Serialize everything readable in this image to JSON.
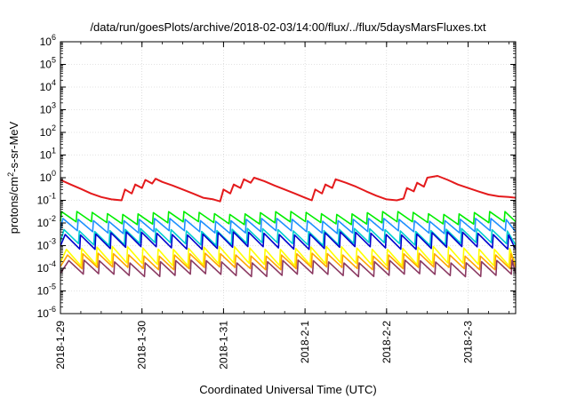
{
  "chart_data": {
    "type": "line",
    "title": "/data/run/goesPlots/archive/2018-02-03/14:00/flux/../flux/5daysMarsFluxes.txt",
    "xlabel": "Coordinated Universal Time (UTC)",
    "ylabel_main": "protons/cm",
    "ylabel_sup": "2",
    "ylabel_rest": "-s-sr-MeV",
    "xscale": "time",
    "x_range": [
      "2018-01-29 00:00",
      "2018-02-03 14:00"
    ],
    "x_ticks": [
      "2018-1-29",
      "2018-1-30",
      "2018-1-31",
      "2018-2-1",
      "2018-2-2",
      "2018-2-3"
    ],
    "yscale": "log",
    "ylim": [
      1e-06,
      1000000.0
    ],
    "y_ticks": [
      {
        "base": "10",
        "exp": "-6"
      },
      {
        "base": "10",
        "exp": "-5"
      },
      {
        "base": "10",
        "exp": "-4"
      },
      {
        "base": "10",
        "exp": "-3"
      },
      {
        "base": "10",
        "exp": "-2"
      },
      {
        "base": "10",
        "exp": "-1"
      },
      {
        "base": "10",
        "exp": "0"
      },
      {
        "base": "10",
        "exp": "1"
      },
      {
        "base": "10",
        "exp": "2"
      },
      {
        "base": "10",
        "exp": "3"
      },
      {
        "base": "10",
        "exp": "4"
      },
      {
        "base": "10",
        "exp": "5"
      },
      {
        "base": "10",
        "exp": "6"
      }
    ],
    "grid": true,
    "legend": "none",
    "series": [
      {
        "color": "#e41a1c",
        "kind": "main",
        "x": [
          "2018-01-29 00:00",
          "2018-01-29 03:00",
          "2018-01-29 06:00",
          "2018-01-29 09:00",
          "2018-01-29 12:00",
          "2018-01-29 15:00",
          "2018-01-29 18:00",
          "2018-01-29 19:00",
          "2018-01-29 21:00",
          "2018-01-29 22:00",
          "2018-01-30 00:00",
          "2018-01-30 01:00",
          "2018-01-30 03:00",
          "2018-01-30 04:00",
          "2018-01-30 06:00",
          "2018-01-30 09:00",
          "2018-01-30 12:00",
          "2018-01-30 15:00",
          "2018-01-30 18:00",
          "2018-01-30 21:00",
          "2018-01-30 23:00",
          "2018-01-31 00:00",
          "2018-01-31 02:00",
          "2018-01-31 03:00",
          "2018-01-31 05:00",
          "2018-01-31 06:00",
          "2018-01-31 08:00",
          "2018-01-31 09:00",
          "2018-01-31 12:00",
          "2018-01-31 15:00",
          "2018-01-31 18:00",
          "2018-01-31 21:00",
          "2018-02-01 00:00",
          "2018-02-01 02:00",
          "2018-02-01 03:00",
          "2018-02-01 05:00",
          "2018-02-01 06:00",
          "2018-02-01 08:00",
          "2018-02-01 09:00",
          "2018-02-01 12:00",
          "2018-02-01 15:00",
          "2018-02-01 18:00",
          "2018-02-01 21:00",
          "2018-02-02 00:00",
          "2018-02-02 03:00",
          "2018-02-02 05:00",
          "2018-02-02 06:00",
          "2018-02-02 08:00",
          "2018-02-02 09:00",
          "2018-02-02 11:00",
          "2018-02-02 12:00",
          "2018-02-02 15:00",
          "2018-02-02 18:00",
          "2018-02-02 21:00",
          "2018-02-03 00:00",
          "2018-02-03 03:00",
          "2018-02-03 06:00",
          "2018-02-03 09:00",
          "2018-02-03 12:00",
          "2018-02-03 14:00"
        ],
        "y": [
          0.8,
          0.5,
          0.32,
          0.2,
          0.14,
          0.11,
          0.1,
          0.3,
          0.2,
          0.5,
          0.35,
          0.8,
          0.55,
          0.9,
          0.65,
          0.45,
          0.3,
          0.2,
          0.13,
          0.11,
          0.09,
          0.3,
          0.2,
          0.5,
          0.35,
          0.85,
          0.6,
          1.0,
          0.7,
          0.45,
          0.3,
          0.2,
          0.13,
          0.1,
          0.3,
          0.2,
          0.5,
          0.35,
          0.85,
          0.6,
          0.4,
          0.25,
          0.16,
          0.11,
          0.1,
          0.12,
          0.35,
          0.25,
          0.6,
          0.4,
          1.0,
          1.2,
          0.8,
          0.5,
          0.35,
          0.25,
          0.18,
          0.15,
          0.14,
          0.13
        ]
      },
      {
        "color": "#00ee00",
        "kind": "saw",
        "base": 0.01,
        "peak": 0.028,
        "period_hours": 4.5,
        "x_start": "2018-01-29 00:00",
        "x_end": "2018-02-03 14:00"
      },
      {
        "color": "#1e90ff",
        "kind": "saw",
        "base": 0.004,
        "peak": 0.014,
        "period_hours": 4.5,
        "x_start": "2018-01-29 00:00",
        "x_end": "2018-02-03 14:00"
      },
      {
        "color": "#00ced1",
        "kind": "saw",
        "base": 0.0012,
        "peak": 0.005,
        "period_hours": 4.5,
        "x_start": "2018-01-29 00:00",
        "x_end": "2018-02-03 14:00"
      },
      {
        "color": "#0000cd",
        "kind": "saw",
        "base": 0.0008,
        "peak": 0.0035,
        "period_hours": 4.5,
        "x_start": "2018-01-29 00:00",
        "x_end": "2018-02-03 14:00"
      },
      {
        "color": "#ffff00",
        "kind": "saw",
        "base": 0.00015,
        "peak": 0.0008,
        "period_hours": 4.5,
        "x_start": "2018-01-29 00:00",
        "x_end": "2018-02-03 14:00"
      },
      {
        "color": "#ffa500",
        "kind": "saw",
        "base": 0.0001,
        "peak": 0.0004,
        "period_hours": 4.5,
        "x_start": "2018-01-29 00:00",
        "x_end": "2018-02-03 14:00"
      },
      {
        "color": "#8b3a62",
        "kind": "saw",
        "base": 5e-05,
        "peak": 0.0002,
        "period_hours": 4.5,
        "x_start": "2018-01-29 00:00",
        "x_end": "2018-02-03 14:00"
      }
    ]
  }
}
